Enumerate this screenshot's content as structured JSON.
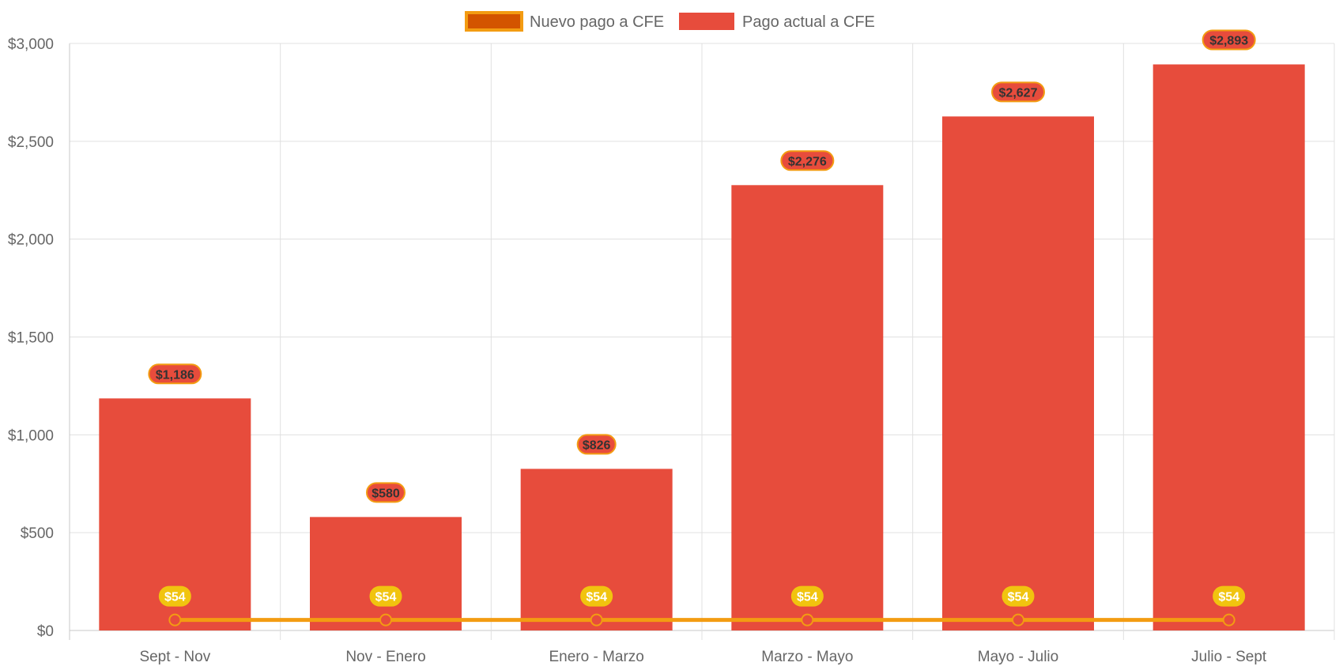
{
  "chart_data": {
    "type": "bar",
    "categories": [
      "Sept - Nov",
      "Nov - Enero",
      "Enero - Marzo",
      "Marzo - Mayo",
      "Mayo - Julio",
      "Julio - Sept"
    ],
    "series": [
      {
        "name": "Nuevo pago a CFE",
        "kind": "line",
        "values": [
          54,
          54,
          54,
          54,
          54,
          54
        ],
        "labels": [
          "$54",
          "$54",
          "$54",
          "$54",
          "$54",
          "$54"
        ],
        "color": "#f39c12",
        "fill_color": "#d35400"
      },
      {
        "name": "Pago actual a CFE",
        "kind": "bar",
        "values": [
          1186,
          580,
          826,
          2276,
          2627,
          2893
        ],
        "labels": [
          "$1,186",
          "$580",
          "$826",
          "$2,276",
          "$2,627",
          "$2,893"
        ],
        "color": "#e74c3c"
      }
    ],
    "ylim": [
      0,
      3000
    ],
    "yticks": [
      0,
      500,
      1000,
      1500,
      2000,
      2500,
      3000
    ],
    "ytick_labels": [
      "$0",
      "$500",
      "$1,000",
      "$1,500",
      "$2,000",
      "$2,500",
      "$3,000"
    ],
    "grid": true,
    "legend_position": "top",
    "colors": {
      "grid": "#e0e0e0",
      "axis": "#c8c8c8",
      "label_border": "#f39c12",
      "label_bg_line": "#f1c40f"
    }
  }
}
